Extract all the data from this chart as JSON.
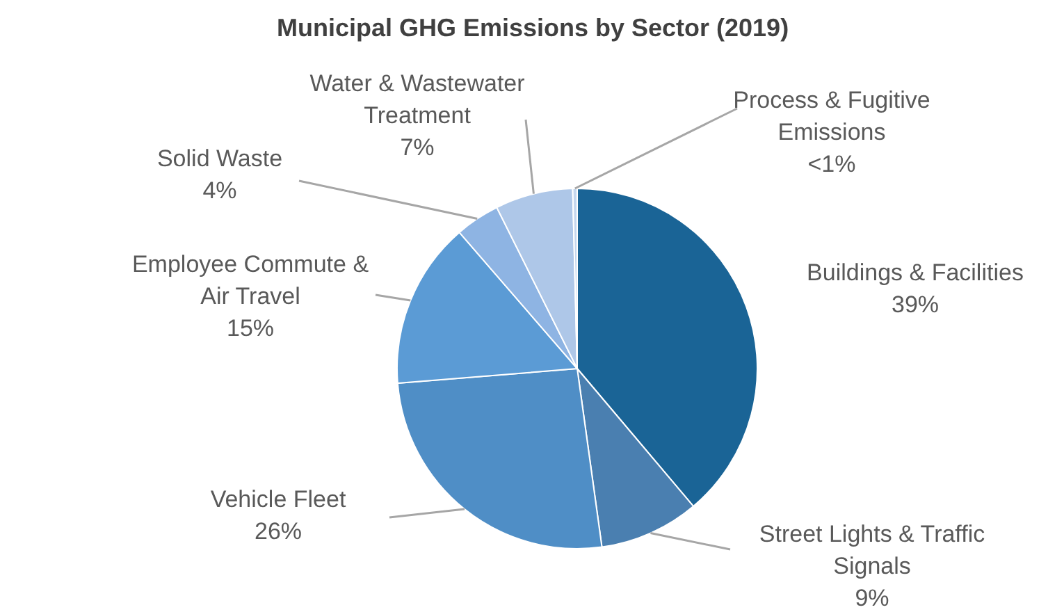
{
  "chart_data": {
    "type": "pie",
    "title": "Municipal GHG Emissions by Sector (2019)",
    "categories": [
      "Buildings & Facilities",
      "Street Lights & Traffic Signals",
      "Vehicle Fleet",
      "Employee Commute & Air Travel",
      "Solid Waste",
      "Water & Wastewater Treatment",
      "Process & Fugitive Emissions"
    ],
    "values": [
      39,
      9,
      26,
      15,
      4,
      7,
      0.4
    ],
    "value_labels": [
      "39%",
      "9%",
      "26%",
      "15%",
      "4%",
      "7%",
      "<1%"
    ],
    "colors": [
      "#1a6496",
      "#4a7fb0",
      "#4f8ec6",
      "#5b9bd5",
      "#8eb4e3",
      "#aec7e8",
      "#c5d7ee"
    ],
    "legend": false
  }
}
